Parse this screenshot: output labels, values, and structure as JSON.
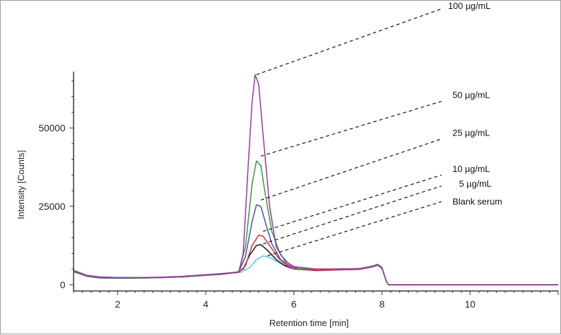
{
  "chart_data": {
    "type": "line",
    "title": "",
    "xlabel": "Retention time [min]",
    "ylabel": "Intensity [Counts]",
    "xlim": [
      1,
      12
    ],
    "ylim": [
      -2000,
      68000
    ],
    "x_ticks": [
      2,
      4,
      6,
      8,
      10
    ],
    "y_ticks": [
      0,
      25000,
      50000
    ],
    "x_tick_labels": [
      "2",
      "4",
      "6",
      "8",
      "10"
    ],
    "y_tick_labels": [
      "0",
      "25000",
      "50000"
    ],
    "grid": false,
    "legend": "none",
    "series": [
      {
        "name": "Blank serum",
        "color": "#5bc8d8",
        "points": [
          [
            1.0,
            4500
          ],
          [
            1.3,
            2800
          ],
          [
            1.6,
            2300
          ],
          [
            2.0,
            2200
          ],
          [
            2.5,
            2200
          ],
          [
            3.0,
            2300
          ],
          [
            3.5,
            2500
          ],
          [
            4.0,
            3000
          ],
          [
            4.4,
            3600
          ],
          [
            4.8,
            4000
          ],
          [
            5.0,
            5500
          ],
          [
            5.15,
            8000
          ],
          [
            5.3,
            9200
          ],
          [
            5.45,
            8700
          ],
          [
            5.6,
            7500
          ],
          [
            5.8,
            6000
          ],
          [
            6.0,
            5000
          ],
          [
            6.5,
            4900
          ],
          [
            7.0,
            5000
          ],
          [
            7.5,
            5200
          ],
          [
            7.8,
            6000
          ],
          [
            7.9,
            6500
          ],
          [
            8.0,
            5500
          ],
          [
            8.1,
            1000
          ],
          [
            8.15,
            0
          ],
          [
            12.0,
            0
          ]
        ]
      },
      {
        "name": "5 µg/mL",
        "color": "#1a1a1a",
        "points": [
          [
            1.0,
            4200
          ],
          [
            1.3,
            2700
          ],
          [
            1.6,
            2200
          ],
          [
            2.0,
            2100
          ],
          [
            2.5,
            2100
          ],
          [
            3.0,
            2300
          ],
          [
            3.5,
            2500
          ],
          [
            4.0,
            3000
          ],
          [
            4.4,
            3400
          ],
          [
            4.7,
            3900
          ],
          [
            4.85,
            5000
          ],
          [
            5.0,
            9500
          ],
          [
            5.15,
            12500
          ],
          [
            5.25,
            12800
          ],
          [
            5.4,
            11000
          ],
          [
            5.6,
            8000
          ],
          [
            5.8,
            6000
          ],
          [
            6.0,
            5000
          ],
          [
            6.5,
            4700
          ],
          [
            7.0,
            4900
          ],
          [
            7.5,
            5000
          ],
          [
            7.8,
            5800
          ],
          [
            7.9,
            6300
          ],
          [
            8.0,
            5300
          ],
          [
            8.1,
            1000
          ],
          [
            8.15,
            0
          ],
          [
            12.0,
            0
          ]
        ]
      },
      {
        "name": "10 µg/mL",
        "color": "#e03030",
        "points": [
          [
            1.0,
            4300
          ],
          [
            1.3,
            2700
          ],
          [
            1.6,
            2300
          ],
          [
            2.0,
            2200
          ],
          [
            2.5,
            2200
          ],
          [
            3.0,
            2300
          ],
          [
            3.5,
            2500
          ],
          [
            4.0,
            3000
          ],
          [
            4.4,
            3500
          ],
          [
            4.75,
            3900
          ],
          [
            4.9,
            6000
          ],
          [
            5.05,
            12500
          ],
          [
            5.2,
            15800
          ],
          [
            5.3,
            15500
          ],
          [
            5.45,
            12500
          ],
          [
            5.65,
            8500
          ],
          [
            5.85,
            6000
          ],
          [
            6.0,
            5000
          ],
          [
            6.5,
            4500
          ],
          [
            7.0,
            4700
          ],
          [
            7.5,
            4900
          ],
          [
            7.8,
            5700
          ],
          [
            7.9,
            6200
          ],
          [
            8.0,
            5200
          ],
          [
            8.1,
            1000
          ],
          [
            8.15,
            0
          ],
          [
            12.0,
            0
          ]
        ]
      },
      {
        "name": "25 µg/mL",
        "color": "#4a5ab8",
        "points": [
          [
            1.0,
            4400
          ],
          [
            1.3,
            2800
          ],
          [
            1.6,
            2300
          ],
          [
            2.0,
            2200
          ],
          [
            2.5,
            2200
          ],
          [
            3.0,
            2300
          ],
          [
            3.5,
            2600
          ],
          [
            4.0,
            3000
          ],
          [
            4.4,
            3500
          ],
          [
            4.75,
            4000
          ],
          [
            4.9,
            9000
          ],
          [
            5.05,
            20000
          ],
          [
            5.15,
            25500
          ],
          [
            5.25,
            25000
          ],
          [
            5.35,
            20000
          ],
          [
            5.5,
            13000
          ],
          [
            5.7,
            8000
          ],
          [
            5.9,
            6000
          ],
          [
            6.1,
            5000
          ],
          [
            6.5,
            4800
          ],
          [
            7.0,
            4900
          ],
          [
            7.5,
            5000
          ],
          [
            7.8,
            5800
          ],
          [
            7.9,
            6300
          ],
          [
            8.0,
            5300
          ],
          [
            8.1,
            1000
          ],
          [
            8.15,
            0
          ],
          [
            12.0,
            0
          ]
        ]
      },
      {
        "name": "50 µg/mL",
        "color": "#3aa040",
        "points": [
          [
            1.0,
            4500
          ],
          [
            1.3,
            2900
          ],
          [
            1.6,
            2400
          ],
          [
            2.0,
            2300
          ],
          [
            2.5,
            2200
          ],
          [
            3.0,
            2400
          ],
          [
            3.5,
            2600
          ],
          [
            4.0,
            3100
          ],
          [
            4.4,
            3600
          ],
          [
            4.75,
            4000
          ],
          [
            4.9,
            12000
          ],
          [
            5.05,
            32000
          ],
          [
            5.15,
            39500
          ],
          [
            5.25,
            38000
          ],
          [
            5.35,
            29000
          ],
          [
            5.5,
            17000
          ],
          [
            5.7,
            9500
          ],
          [
            5.9,
            6500
          ],
          [
            6.1,
            5200
          ],
          [
            6.5,
            4900
          ],
          [
            7.0,
            5000
          ],
          [
            7.5,
            5100
          ],
          [
            7.8,
            5900
          ],
          [
            7.9,
            6400
          ],
          [
            8.0,
            5400
          ],
          [
            8.1,
            1000
          ],
          [
            8.15,
            0
          ],
          [
            12.0,
            0
          ]
        ]
      },
      {
        "name": "100 µg/mL",
        "color": "#a03ca8",
        "points": [
          [
            1.0,
            4600
          ],
          [
            1.3,
            3000
          ],
          [
            1.6,
            2500
          ],
          [
            2.0,
            2300
          ],
          [
            2.5,
            2300
          ],
          [
            3.0,
            2400
          ],
          [
            3.5,
            2700
          ],
          [
            4.0,
            3200
          ],
          [
            4.4,
            3600
          ],
          [
            4.75,
            4100
          ],
          [
            4.85,
            10000
          ],
          [
            4.95,
            35000
          ],
          [
            5.05,
            58000
          ],
          [
            5.12,
            67000
          ],
          [
            5.2,
            64000
          ],
          [
            5.3,
            48000
          ],
          [
            5.45,
            25000
          ],
          [
            5.6,
            12000
          ],
          [
            5.8,
            7500
          ],
          [
            6.0,
            5800
          ],
          [
            6.5,
            5000
          ],
          [
            7.0,
            5000
          ],
          [
            7.5,
            5100
          ],
          [
            7.8,
            6000
          ],
          [
            7.9,
            6500
          ],
          [
            8.0,
            5500
          ],
          [
            8.1,
            1000
          ],
          [
            8.15,
            0
          ],
          [
            12.0,
            0
          ]
        ]
      }
    ],
    "annotations": [
      {
        "label": "100 µg/mL",
        "from": [
          5.15,
          67000
        ],
        "to": [
          9.35,
          88000
        ],
        "text_at": [
          9.5,
          88000
        ]
      },
      {
        "label": "50 µg/mL",
        "from": [
          5.25,
          41000
        ],
        "to": [
          9.35,
          58500
        ],
        "text_at": [
          9.6,
          59500
        ]
      },
      {
        "label": "25 µg/mL",
        "from": [
          5.25,
          27000
        ],
        "to": [
          9.35,
          46500
        ],
        "text_at": [
          9.6,
          47500
        ]
      },
      {
        "label": "10 µg/mL",
        "from": [
          5.3,
          17000
        ],
        "to": [
          9.35,
          35000
        ],
        "text_at": [
          9.6,
          36000
        ]
      },
      {
        "label": "5 µg/mL",
        "from": [
          5.3,
          13000
        ],
        "to": [
          9.35,
          31500
        ],
        "text_at": [
          9.75,
          31200
        ]
      },
      {
        "label": "Blank serum",
        "from": [
          5.4,
          9200
        ],
        "to": [
          9.35,
          26500
        ],
        "text_at": [
          9.6,
          25500
        ]
      }
    ]
  }
}
